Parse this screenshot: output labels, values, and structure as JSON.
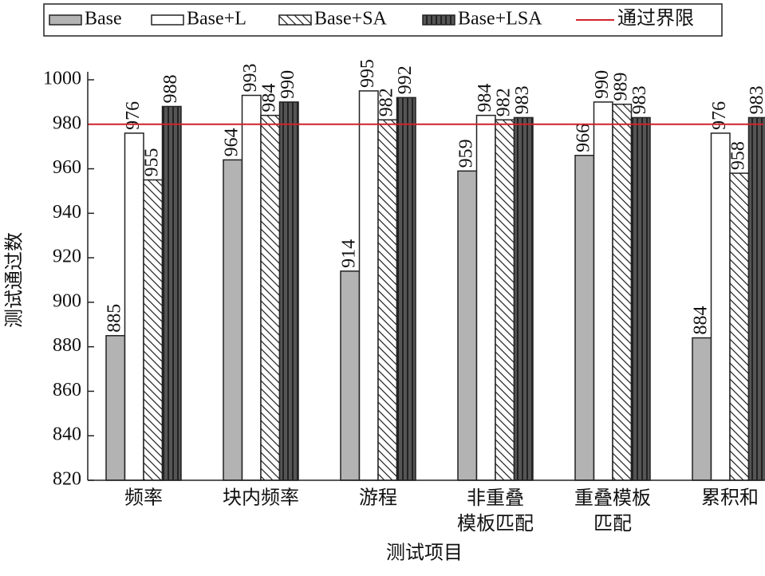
{
  "chart_data": {
    "type": "bar",
    "x_label": "测试项目",
    "y_label": "测试通过数",
    "categories": [
      "频率",
      "块内频率",
      "游程",
      "非重叠\n模板匹配",
      "重叠模板\n匹配",
      "累积和"
    ],
    "series": [
      {
        "name": "Base",
        "color": "#b3b3b3",
        "pattern": "none",
        "values": [
          885,
          964,
          914,
          959,
          966,
          884
        ]
      },
      {
        "name": "Base+L",
        "color": "#ffffff",
        "pattern": "none",
        "values": [
          976,
          993,
          995,
          984,
          990,
          976
        ]
      },
      {
        "name": "Base+SA",
        "color": "#ffffff",
        "pattern": "diagonal",
        "values": [
          955,
          984,
          982,
          982,
          989,
          958
        ]
      },
      {
        "name": "Base+LSA",
        "color": "#555555",
        "pattern": "vertical",
        "values": [
          988,
          990,
          992,
          983,
          983,
          983
        ]
      }
    ],
    "reference_line": {
      "name": "通过界限",
      "value": 980,
      "color": "#d0232b"
    },
    "ylim": [
      820,
      1000
    ],
    "yticks": [
      820,
      840,
      860,
      880,
      900,
      920,
      940,
      960,
      980,
      1000
    ],
    "grid": false,
    "legend": "top"
  }
}
